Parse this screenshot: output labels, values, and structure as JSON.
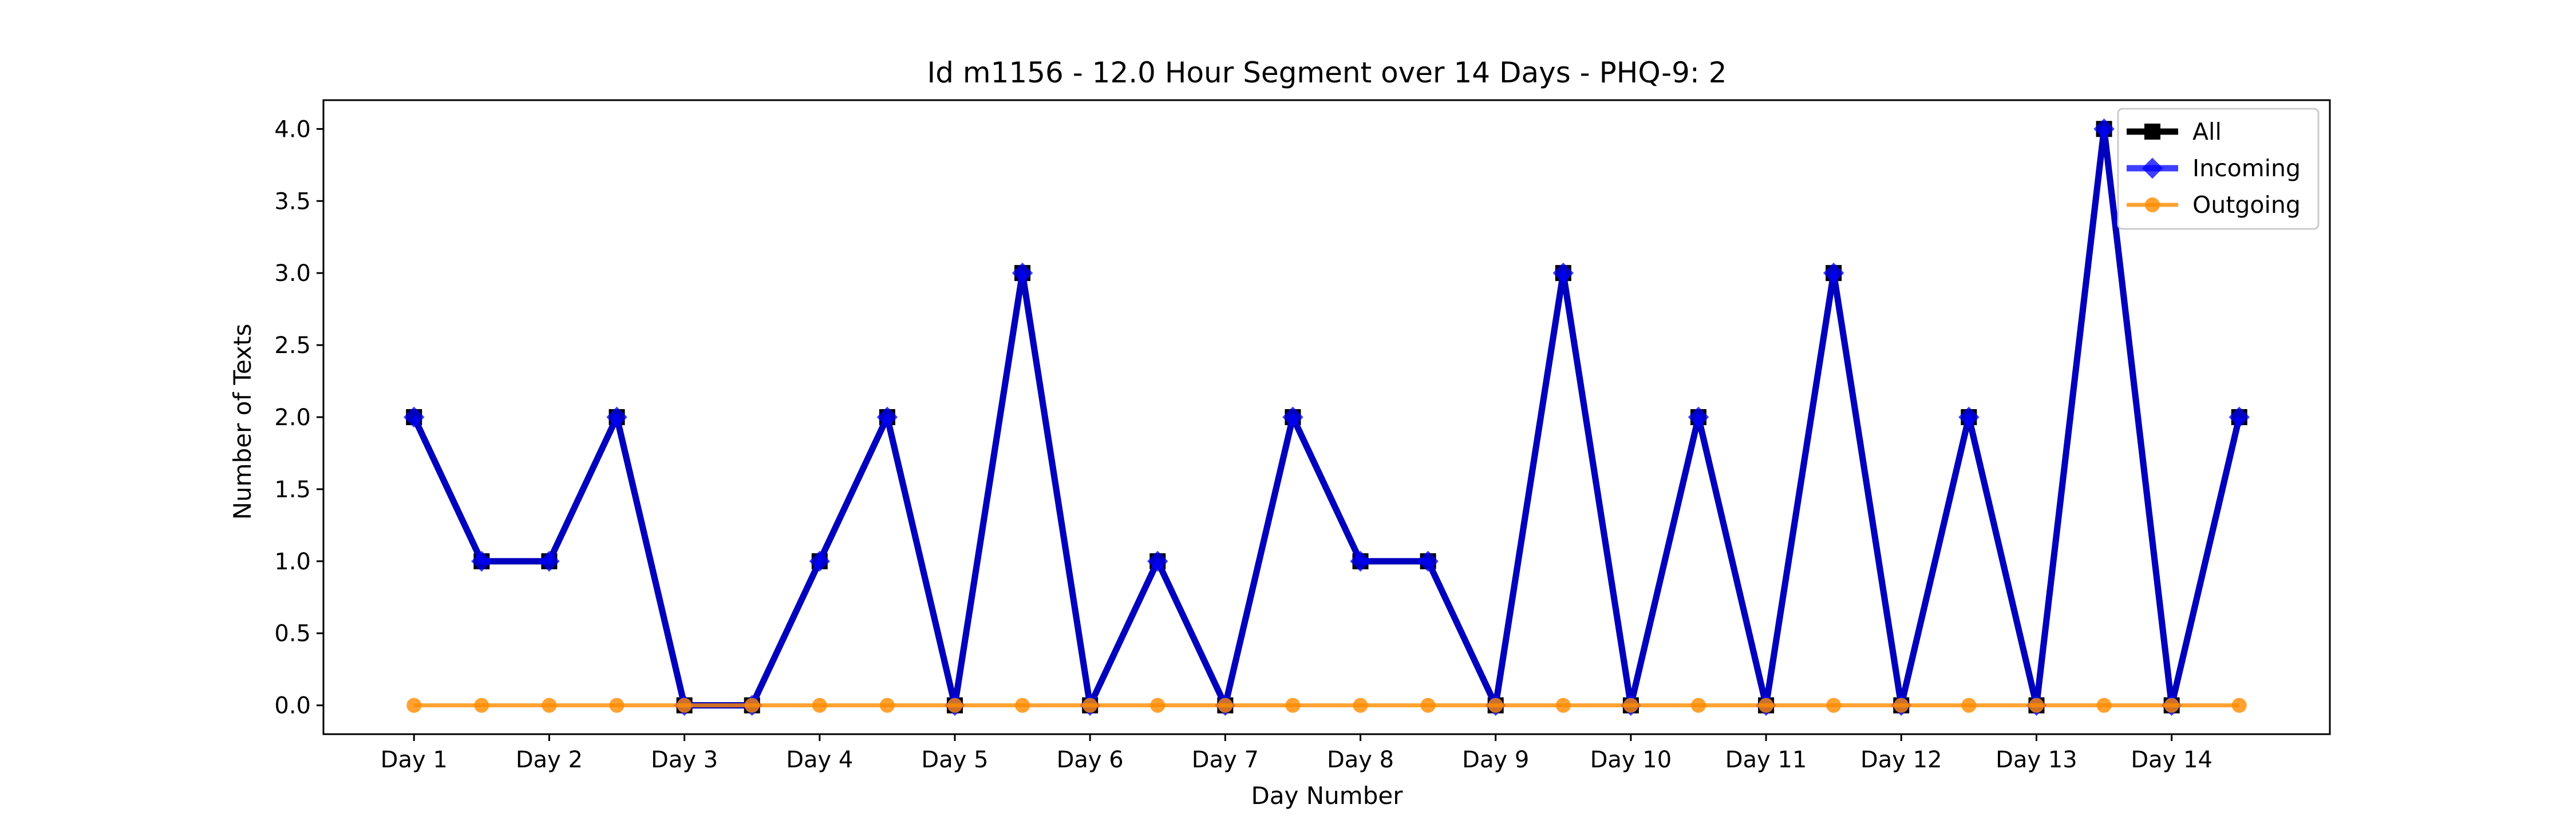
{
  "chart_data": {
    "type": "line",
    "title": "Id m1156 - 12.0 Hour Segment over 14 Days - PHQ-9: 2",
    "xlabel": "Day Number",
    "ylabel": "Number of Texts",
    "ylim": [
      -0.2,
      4.2
    ],
    "yticks": [
      "0.0",
      "0.5",
      "1.0",
      "1.5",
      "2.0",
      "2.5",
      "3.0",
      "3.5",
      "4.0"
    ],
    "ytick_values": [
      0,
      0.5,
      1.0,
      1.5,
      2.0,
      2.5,
      3.0,
      3.5,
      4.0
    ],
    "xticks": [
      "Day 1",
      "Day 2",
      "Day 3",
      "Day 4",
      "Day 5",
      "Day 6",
      "Day 7",
      "Day 8",
      "Day 9",
      "Day 10",
      "Day 11",
      "Day 12",
      "Day 13",
      "Day 14"
    ],
    "x": [
      1,
      1.5,
      2,
      2.5,
      3,
      3.5,
      4,
      4.5,
      5,
      5.5,
      6,
      6.5,
      7,
      7.5,
      8,
      8.5,
      9,
      9.5,
      10,
      10.5,
      11,
      11.5,
      12,
      12.5,
      13,
      13.5,
      14,
      14.5
    ],
    "xlim": [
      0.33,
      15.17
    ],
    "legend_position": "top-right",
    "grid": false,
    "series": [
      {
        "name": "All",
        "color": "#000000",
        "marker": "square",
        "values": [
          2,
          1,
          1,
          2,
          0,
          0,
          1,
          2,
          0,
          3,
          0,
          1,
          0,
          2,
          1,
          1,
          0,
          3,
          0,
          2,
          0,
          3,
          0,
          2,
          0,
          4,
          0,
          2
        ]
      },
      {
        "name": "Incoming",
        "color": "#0000ff",
        "marker": "diamond",
        "values": [
          2,
          1,
          1,
          2,
          0,
          0,
          1,
          2,
          0,
          3,
          0,
          1,
          0,
          2,
          1,
          1,
          0,
          3,
          0,
          2,
          0,
          3,
          0,
          2,
          0,
          4,
          0,
          2
        ]
      },
      {
        "name": "Outgoing",
        "color": "#ff8c00",
        "marker": "circle",
        "values": [
          0,
          0,
          0,
          0,
          0,
          0,
          0,
          0,
          0,
          0,
          0,
          0,
          0,
          0,
          0,
          0,
          0,
          0,
          0,
          0,
          0,
          0,
          0,
          0,
          0,
          0,
          0,
          0
        ]
      }
    ]
  }
}
